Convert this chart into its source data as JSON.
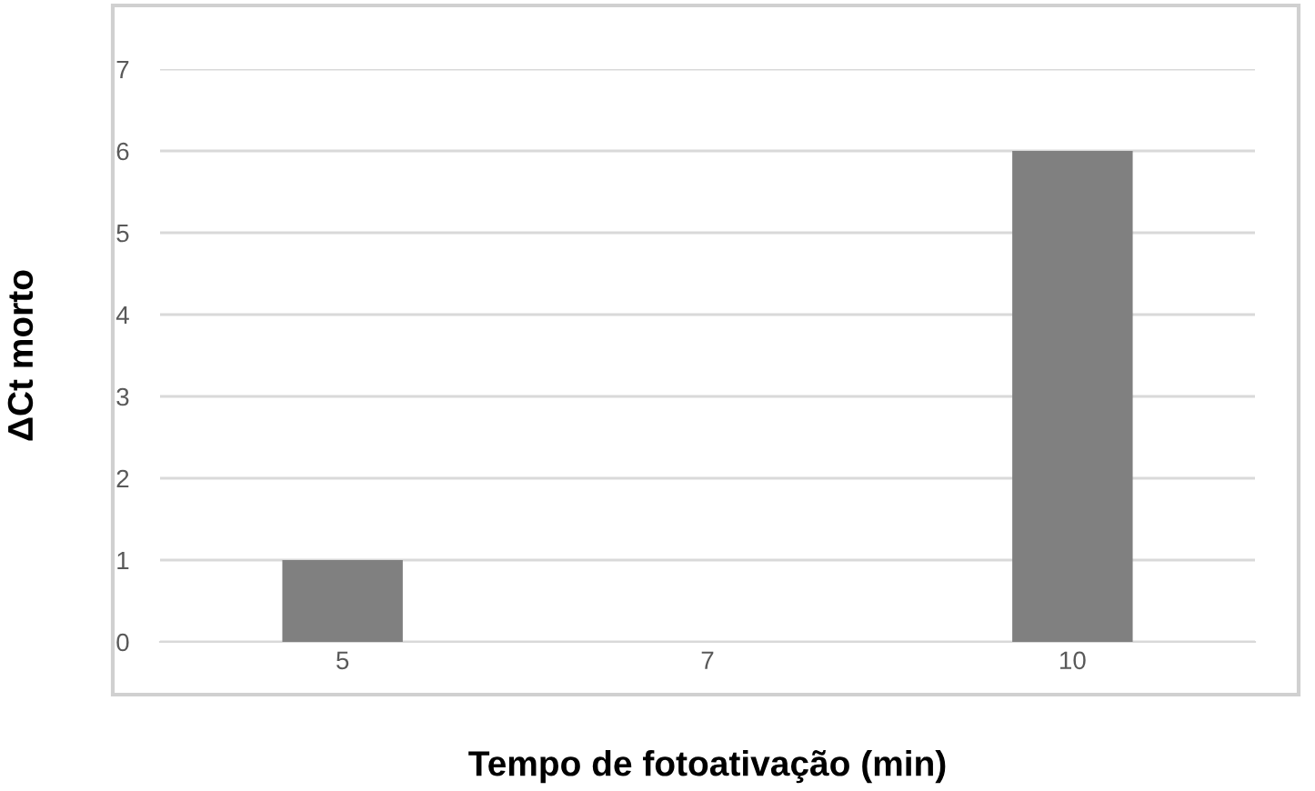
{
  "chart_data": {
    "type": "bar",
    "xlabel": "Tempo de fotoativação (min)",
    "ylabel": "ΔCt morto",
    "categories": [
      "5",
      "7",
      "10"
    ],
    "values": [
      1,
      0,
      6
    ],
    "color": "#808080",
    "ylim": [
      0,
      7
    ],
    "yticks": [
      0,
      1,
      2,
      3,
      4,
      5,
      6,
      7
    ],
    "grid": "y"
  }
}
